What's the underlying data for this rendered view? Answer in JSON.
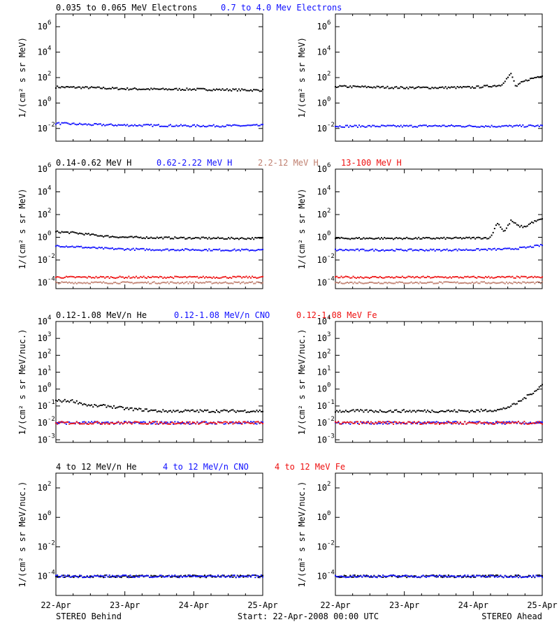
{
  "colors": {
    "black": "#000000",
    "blue": "#1010ff",
    "brown": "#c08070",
    "red": "#ee1010"
  },
  "row_legends": [
    [
      {
        "text": "0.035 to 0.065 MeV Electrons",
        "color": "black"
      },
      {
        "text": "0.7 to 4.0 Mev Electrons",
        "color": "blue"
      }
    ],
    [
      {
        "text": "0.14-0.62 MeV H",
        "color": "black"
      },
      {
        "text": "0.62-2.22 MeV H",
        "color": "blue"
      },
      {
        "text": "2.2-12 MeV H",
        "color": "brown"
      },
      {
        "text": "13-100 MeV H",
        "color": "red"
      }
    ],
    [
      {
        "text": "0.12-1.08 MeV/n He",
        "color": "black"
      },
      {
        "text": "0.12-1.08 MeV/n CNO",
        "color": "blue"
      },
      {
        "text": "0.12-1.08 MeV Fe",
        "color": "red"
      }
    ],
    [
      {
        "text": "4 to 12 MeV/n He",
        "color": "black"
      },
      {
        "text": "4 to 12 MeV/n CNO",
        "color": "blue"
      },
      {
        "text": "4 to 12 MeV Fe",
        "color": "red"
      }
    ]
  ],
  "x_ticks": [
    "22-Apr",
    "23-Apr",
    "24-Apr",
    "25-Apr"
  ],
  "footer": {
    "left": "STEREO Behind",
    "center": "Start: 22-Apr-2008 00:00 UTC",
    "right": "STEREO Ahead"
  },
  "chart_data": [
    {
      "type": "scatter",
      "row": 0,
      "col": 0,
      "scale": "log",
      "ylabel": "1/(cm² s sr MeV)",
      "ylim": [
        0.001,
        10000000
      ],
      "yticks": [
        {
          "mant": "10",
          "exp": "6"
        },
        {
          "mant": "10",
          "exp": "4"
        },
        {
          "mant": "10",
          "exp": "2"
        },
        {
          "mant": "10",
          "exp": "0"
        },
        {
          "mant": "10",
          "exp": "-2"
        }
      ],
      "xlim": [
        0,
        3
      ],
      "series": [
        {
          "name": "0.035 to 0.065 MeV Electrons",
          "color": "black",
          "x": [
            0,
            0.5,
            1,
            1.5,
            2,
            2.5,
            3
          ],
          "y": [
            18,
            16,
            13,
            12,
            12,
            11,
            10
          ]
        },
        {
          "name": "0.7 to 4.0 Mev Electrons",
          "color": "blue",
          "x": [
            0,
            0.5,
            1,
            1.5,
            2,
            2.5,
            3
          ],
          "y": [
            0.025,
            0.02,
            0.018,
            0.017,
            0.016,
            0.016,
            0.017
          ]
        }
      ]
    },
    {
      "type": "scatter",
      "row": 0,
      "col": 1,
      "scale": "log",
      "ylabel": "1/(cm² s sr MeV)",
      "ylim": [
        0.001,
        10000000
      ],
      "yticks": [
        {
          "mant": "10",
          "exp": "6"
        },
        {
          "mant": "10",
          "exp": "4"
        },
        {
          "mant": "10",
          "exp": "2"
        },
        {
          "mant": "10",
          "exp": "0"
        },
        {
          "mant": "10",
          "exp": "-2"
        }
      ],
      "xlim": [
        0,
        3
      ],
      "series": [
        {
          "name": "0.035 to 0.065 MeV Electrons",
          "color": "black",
          "x": [
            0,
            0.5,
            1,
            1.5,
            2,
            2.4,
            2.55,
            2.62,
            2.7,
            2.8,
            2.9,
            3
          ],
          "y": [
            20,
            18,
            16,
            16,
            17,
            25,
            200,
            18,
            40,
            70,
            100,
            150
          ]
        },
        {
          "name": "0.7 to 4.0 Mev Electrons",
          "color": "blue",
          "x": [
            0,
            0.5,
            1,
            1.5,
            2,
            2.5,
            3
          ],
          "y": [
            0.015,
            0.015,
            0.015,
            0.016,
            0.015,
            0.015,
            0.016
          ]
        }
      ]
    },
    {
      "type": "scatter",
      "row": 1,
      "col": 0,
      "scale": "log",
      "ylabel": "1/(cm² s sr MeV)",
      "ylim": [
        3e-05,
        1000000
      ],
      "yticks": [
        {
          "mant": "10",
          "exp": "6"
        },
        {
          "mant": "10",
          "exp": "4"
        },
        {
          "mant": "10",
          "exp": "2"
        },
        {
          "mant": "10",
          "exp": "0"
        },
        {
          "mant": "10",
          "exp": "-2"
        },
        {
          "mant": "10",
          "exp": "-4"
        }
      ],
      "xlim": [
        0,
        3
      ],
      "series": [
        {
          "name": "0.14-0.62 MeV H",
          "color": "black",
          "x": [
            0,
            0.25,
            0.5,
            0.75,
            1,
            1.5,
            2,
            2.5,
            3
          ],
          "y": [
            3,
            2.5,
            1.7,
            1.2,
            1,
            0.9,
            0.85,
            0.8,
            0.8
          ]
        },
        {
          "name": "0.62-2.22 MeV H",
          "color": "blue",
          "x": [
            0,
            0.25,
            0.5,
            0.75,
            1,
            1.5,
            2,
            2.5,
            3
          ],
          "y": [
            0.18,
            0.15,
            0.12,
            0.1,
            0.09,
            0.08,
            0.08,
            0.075,
            0.075
          ]
        },
        {
          "name": "2.2-12 MeV H",
          "color": "brown",
          "x": [
            0,
            1,
            2,
            3
          ],
          "y": [
            0.0001,
            0.0001,
            0.0001,
            0.0001
          ]
        },
        {
          "name": "13-100 MeV H",
          "color": "red",
          "x": [
            0,
            1,
            2,
            3
          ],
          "y": [
            0.0003,
            0.0003,
            0.0003,
            0.0003
          ]
        }
      ]
    },
    {
      "type": "scatter",
      "row": 1,
      "col": 1,
      "scale": "log",
      "ylabel": "1/(cm² s sr MeV)",
      "ylim": [
        3e-05,
        1000000
      ],
      "yticks": [
        {
          "mant": "10",
          "exp": "6"
        },
        {
          "mant": "10",
          "exp": "4"
        },
        {
          "mant": "10",
          "exp": "2"
        },
        {
          "mant": "10",
          "exp": "0"
        },
        {
          "mant": "10",
          "exp": "-2"
        },
        {
          "mant": "10",
          "exp": "-4"
        }
      ],
      "xlim": [
        0,
        3
      ],
      "series": [
        {
          "name": "0.14-0.62 MeV H",
          "color": "black",
          "x": [
            0,
            0.5,
            1,
            1.5,
            2,
            2.25,
            2.35,
            2.45,
            2.55,
            2.65,
            2.75,
            2.85,
            3
          ],
          "y": [
            0.8,
            0.8,
            0.8,
            0.8,
            0.85,
            0.9,
            20,
            3,
            30,
            10,
            8,
            20,
            40
          ]
        },
        {
          "name": "0.62-2.22 MeV H",
          "color": "blue",
          "x": [
            0,
            0.5,
            1,
            1.5,
            2,
            2.5,
            2.75,
            3
          ],
          "y": [
            0.075,
            0.075,
            0.075,
            0.075,
            0.08,
            0.09,
            0.12,
            0.2
          ]
        },
        {
          "name": "2.2-12 MeV H",
          "color": "brown",
          "x": [
            0,
            1,
            2,
            3
          ],
          "y": [
            0.0001,
            0.0001,
            0.0001,
            0.0001
          ]
        },
        {
          "name": "13-100 MeV H",
          "color": "red",
          "x": [
            0,
            1,
            2,
            3
          ],
          "y": [
            0.0003,
            0.0003,
            0.0003,
            0.0003
          ]
        }
      ]
    },
    {
      "type": "scatter",
      "row": 2,
      "col": 0,
      "scale": "log",
      "ylabel": "1/(cm² s sr MeV/nuc.)",
      "ylim": [
        0.0007,
        10000
      ],
      "yticks": [
        {
          "mant": "10",
          "exp": "4"
        },
        {
          "mant": "10",
          "exp": "3"
        },
        {
          "mant": "10",
          "exp": "2"
        },
        {
          "mant": "10",
          "exp": "1"
        },
        {
          "mant": "10",
          "exp": "0"
        },
        {
          "mant": "10",
          "exp": "-1"
        },
        {
          "mant": "10",
          "exp": "-2"
        },
        {
          "mant": "10",
          "exp": "-3"
        }
      ],
      "xlim": [
        0,
        3
      ],
      "series": [
        {
          "name": "0.12-1.08 MeV/n He",
          "color": "black",
          "x": [
            0,
            0.25,
            0.5,
            0.75,
            1,
            1.5,
            2,
            2.5,
            3
          ],
          "y": [
            0.2,
            0.2,
            0.1,
            0.1,
            0.07,
            0.05,
            0.05,
            0.05,
            0.05
          ]
        },
        {
          "name": "0.12-1.08 MeV/n CNO",
          "color": "blue",
          "x": [
            0,
            1,
            2,
            3
          ],
          "y": [
            0.01,
            0.01,
            0.01,
            0.01
          ]
        },
        {
          "name": "0.12-1.08 MeV Fe",
          "color": "red",
          "x": [
            0,
            1,
            2,
            3
          ],
          "y": [
            0.01,
            0.01,
            0.01,
            0.01
          ]
        }
      ]
    },
    {
      "type": "scatter",
      "row": 2,
      "col": 1,
      "scale": "log",
      "ylabel": "1/(cm² s sr MeV/nuc.)",
      "ylim": [
        0.0007,
        10000
      ],
      "yticks": [
        {
          "mant": "10",
          "exp": "4"
        },
        {
          "mant": "10",
          "exp": "3"
        },
        {
          "mant": "10",
          "exp": "2"
        },
        {
          "mant": "10",
          "exp": "1"
        },
        {
          "mant": "10",
          "exp": "0"
        },
        {
          "mant": "10",
          "exp": "-1"
        },
        {
          "mant": "10",
          "exp": "-2"
        },
        {
          "mant": "10",
          "exp": "-3"
        }
      ],
      "xlim": [
        0,
        3
      ],
      "series": [
        {
          "name": "0.12-1.08 MeV/n He",
          "color": "black",
          "x": [
            0,
            0.5,
            1,
            1.5,
            2,
            2.4,
            2.6,
            2.75,
            2.9,
            3
          ],
          "y": [
            0.05,
            0.05,
            0.05,
            0.05,
            0.05,
            0.06,
            0.12,
            0.3,
            0.8,
            1.8
          ]
        },
        {
          "name": "0.12-1.08 MeV/n CNO",
          "color": "blue",
          "x": [
            0,
            1,
            2,
            3
          ],
          "y": [
            0.01,
            0.01,
            0.01,
            0.01
          ]
        },
        {
          "name": "0.12-1.08 MeV Fe",
          "color": "red",
          "x": [
            0,
            1,
            2,
            3
          ],
          "y": [
            0.01,
            0.01,
            0.01,
            0.01
          ]
        }
      ]
    },
    {
      "type": "scatter",
      "row": 3,
      "col": 0,
      "scale": "log",
      "ylabel": "1/(cm² s sr MeV/nuc.)",
      "ylim": [
        5e-06,
        1000
      ],
      "yticks": [
        {
          "mant": "10",
          "exp": "2"
        },
        {
          "mant": "10",
          "exp": "0"
        },
        {
          "mant": "10",
          "exp": "-2"
        },
        {
          "mant": "10",
          "exp": "-4"
        }
      ],
      "xlim": [
        0,
        3
      ],
      "series": [
        {
          "name": "4 to 12 MeV/n He",
          "color": "black",
          "x": [
            0,
            1,
            2,
            3
          ],
          "y": [
            0.0001,
            0.0001,
            0.0001,
            0.0001
          ]
        },
        {
          "name": "4 to 12 MeV/n CNO",
          "color": "blue",
          "x": [
            0,
            1,
            2,
            3
          ],
          "y": [
            0.0001,
            0.0001,
            0.0001,
            0.0001
          ]
        }
      ]
    },
    {
      "type": "scatter",
      "row": 3,
      "col": 1,
      "scale": "log",
      "ylabel": "1/(cm² s sr MeV/nuc.)",
      "ylim": [
        5e-06,
        1000
      ],
      "yticks": [
        {
          "mant": "10",
          "exp": "2"
        },
        {
          "mant": "10",
          "exp": "0"
        },
        {
          "mant": "10",
          "exp": "-2"
        },
        {
          "mant": "10",
          "exp": "-4"
        }
      ],
      "xlim": [
        0,
        3
      ],
      "series": [
        {
          "name": "4 to 12 MeV/n He",
          "color": "black",
          "x": [
            0,
            1,
            2,
            3
          ],
          "y": [
            0.0001,
            0.0001,
            0.0001,
            0.0001
          ]
        },
        {
          "name": "4 to 12 MeV/n CNO",
          "color": "blue",
          "x": [
            0,
            1,
            2,
            3
          ],
          "y": [
            0.0001,
            0.0001,
            0.0001,
            0.0001
          ]
        }
      ]
    }
  ]
}
